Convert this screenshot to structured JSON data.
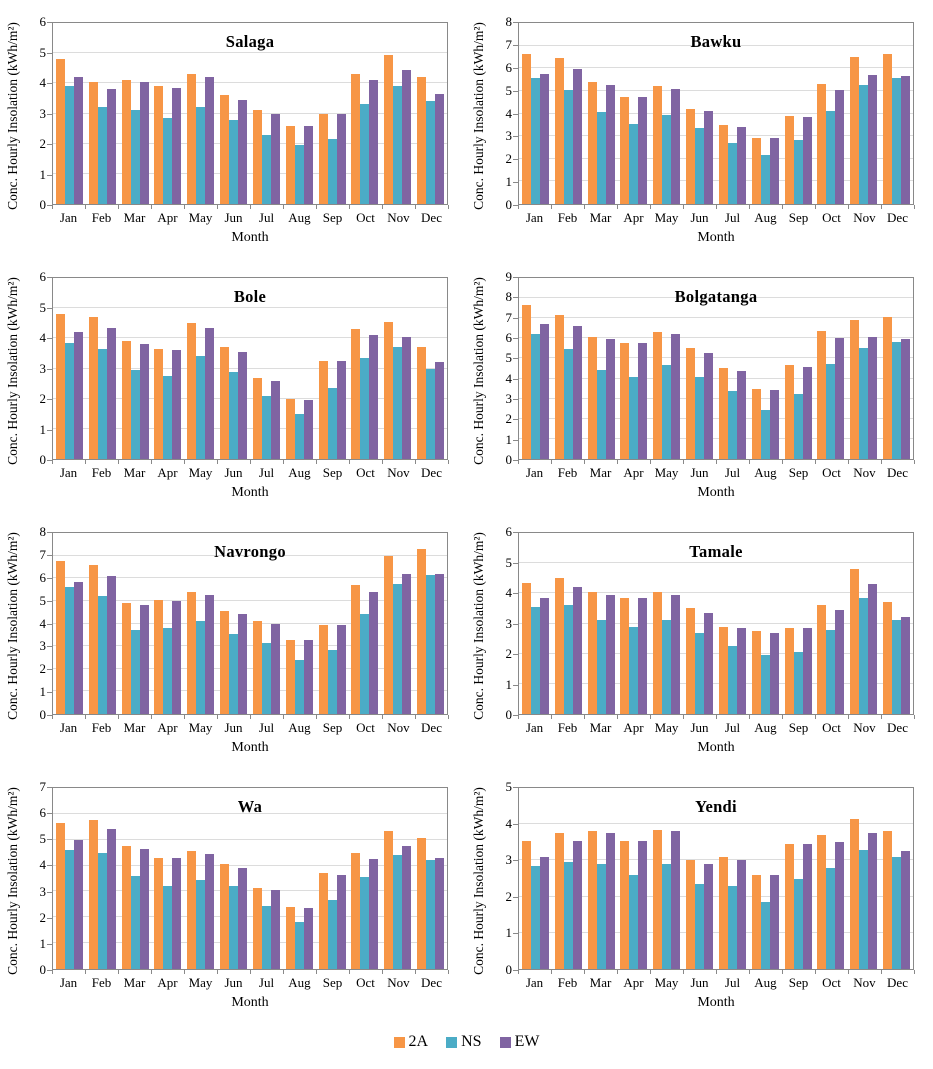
{
  "page": {
    "background": "#ffffff"
  },
  "axes_common": {
    "ylabel": "Conc. Hourly Insolation (kWh/m²)",
    "xlabel": "Month"
  },
  "colors": {
    "series_2A": "#F79646",
    "series_NS": "#4BACC6",
    "series_EW": "#8064A2",
    "gridline": "#DCDCDC",
    "axis_line": "#898989",
    "text": "#000000"
  },
  "legend": {
    "items": [
      {
        "label": "2A",
        "color": "#F79646"
      },
      {
        "label": "NS",
        "color": "#4BACC6"
      },
      {
        "label": "EW",
        "color": "#8064A2"
      }
    ]
  },
  "chart_data": [
    {
      "type": "bar",
      "title": "Salaga",
      "xlabel": "Month",
      "ylabel": "Conc. Hourly Insolation (kWh/m²)",
      "ylim": [
        0,
        6
      ],
      "ytick_step": 1,
      "grid": true,
      "categories": [
        "Jan",
        "Feb",
        "Mar",
        "Apr",
        "May",
        "Jun",
        "Jul",
        "Aug",
        "Sep",
        "Oct",
        "Nov",
        "Dec"
      ],
      "series": [
        {
          "name": "2A",
          "color": "#F79646",
          "values": [
            4.8,
            4.05,
            4.1,
            3.9,
            4.3,
            3.6,
            3.1,
            2.6,
            3.0,
            4.3,
            4.95,
            4.2
          ]
        },
        {
          "name": "NS",
          "color": "#4BACC6",
          "values": [
            3.9,
            3.2,
            3.1,
            2.85,
            3.2,
            2.8,
            2.3,
            1.95,
            2.15,
            3.3,
            3.9,
            3.4
          ]
        },
        {
          "name": "EW",
          "color": "#8064A2",
          "values": [
            4.2,
            3.8,
            4.05,
            3.85,
            4.2,
            3.45,
            3.0,
            2.6,
            3.0,
            4.1,
            4.45,
            3.65
          ]
        }
      ]
    },
    {
      "type": "bar",
      "title": "Bawku",
      "xlabel": "Month",
      "ylabel": "Conc. Hourly Insolation (kWh/m²)",
      "ylim": [
        0,
        8
      ],
      "ytick_step": 1,
      "grid": true,
      "categories": [
        "Jan",
        "Feb",
        "Mar",
        "Apr",
        "May",
        "Jun",
        "Jul",
        "Aug",
        "Sep",
        "Oct",
        "Nov",
        "Dec"
      ],
      "series": [
        {
          "name": "2A",
          "color": "#F79646",
          "values": [
            6.65,
            6.45,
            5.4,
            4.75,
            5.2,
            4.2,
            3.5,
            2.9,
            3.9,
            5.3,
            6.5,
            6.65
          ]
        },
        {
          "name": "NS",
          "color": "#4BACC6",
          "values": [
            5.55,
            5.05,
            4.05,
            3.55,
            3.95,
            3.35,
            2.7,
            2.15,
            2.85,
            4.1,
            5.25,
            5.55
          ]
        },
        {
          "name": "EW",
          "color": "#8064A2",
          "values": [
            5.75,
            5.95,
            5.25,
            4.75,
            5.1,
            4.1,
            3.4,
            2.9,
            3.85,
            5.05,
            5.7,
            5.65
          ]
        }
      ]
    },
    {
      "type": "bar",
      "title": "Bole",
      "xlabel": "Month",
      "ylabel": "Conc. Hourly Insolation (kWh/m²)",
      "ylim": [
        0,
        6
      ],
      "ytick_step": 1,
      "grid": true,
      "categories": [
        "Jan",
        "Feb",
        "Mar",
        "Apr",
        "May",
        "Jun",
        "Jul",
        "Aug",
        "Sep",
        "Oct",
        "Nov",
        "Dec"
      ],
      "series": [
        {
          "name": "2A",
          "color": "#F79646",
          "values": [
            4.8,
            4.7,
            3.9,
            3.65,
            4.5,
            3.7,
            2.7,
            2.0,
            3.25,
            4.3,
            4.55,
            3.7
          ]
        },
        {
          "name": "NS",
          "color": "#4BACC6",
          "values": [
            3.85,
            3.65,
            2.95,
            2.75,
            3.4,
            2.9,
            2.1,
            1.5,
            2.35,
            3.35,
            3.7,
            3.0
          ]
        },
        {
          "name": "EW",
          "color": "#8064A2",
          "values": [
            4.2,
            4.35,
            3.8,
            3.6,
            4.35,
            3.55,
            2.6,
            1.95,
            3.25,
            4.1,
            4.05,
            3.2
          ]
        }
      ]
    },
    {
      "type": "bar",
      "title": "Bolgatanga",
      "xlabel": "Month",
      "ylabel": "Conc. Hourly Insolation (kWh/m²)",
      "ylim": [
        0,
        9
      ],
      "ytick_step": 1,
      "grid": true,
      "categories": [
        "Jan",
        "Feb",
        "Mar",
        "Apr",
        "May",
        "Jun",
        "Jul",
        "Aug",
        "Sep",
        "Oct",
        "Nov",
        "Dec"
      ],
      "series": [
        {
          "name": "2A",
          "color": "#F79646",
          "values": [
            7.65,
            7.15,
            6.05,
            5.75,
            6.3,
            5.5,
            4.55,
            3.5,
            4.65,
            6.35,
            6.9,
            7.05
          ]
        },
        {
          "name": "NS",
          "color": "#4BACC6",
          "values": [
            6.2,
            5.45,
            4.45,
            4.1,
            4.65,
            4.1,
            3.4,
            2.45,
            3.25,
            4.7,
            5.5,
            5.8
          ]
        },
        {
          "name": "EW",
          "color": "#8064A2",
          "values": [
            6.7,
            6.6,
            5.95,
            5.75,
            6.2,
            5.25,
            4.4,
            3.45,
            4.6,
            6.0,
            6.05,
            5.95
          ]
        }
      ]
    },
    {
      "type": "bar",
      "title": "Navrongo",
      "xlabel": "Month",
      "ylabel": "Conc. Hourly Insolation (kWh/m²)",
      "ylim": [
        0,
        8
      ],
      "ytick_step": 1,
      "grid": true,
      "categories": [
        "Jan",
        "Feb",
        "Mar",
        "Apr",
        "May",
        "Jun",
        "Jul",
        "Aug",
        "Sep",
        "Oct",
        "Nov",
        "Dec"
      ],
      "series": [
        {
          "name": "2A",
          "color": "#F79646",
          "values": [
            6.75,
            6.6,
            4.9,
            5.05,
            5.4,
            4.55,
            4.1,
            3.25,
            3.95,
            5.7,
            7.0,
            7.3
          ]
        },
        {
          "name": "NS",
          "color": "#4BACC6",
          "values": [
            5.6,
            5.2,
            3.7,
            3.8,
            4.1,
            3.55,
            3.15,
            2.4,
            2.85,
            4.4,
            5.75,
            6.15
          ]
        },
        {
          "name": "EW",
          "color": "#8064A2",
          "values": [
            5.85,
            6.1,
            4.8,
            5.0,
            5.25,
            4.4,
            4.0,
            3.25,
            3.95,
            5.4,
            6.2,
            6.2
          ]
        }
      ]
    },
    {
      "type": "bar",
      "title": "Tamale",
      "xlabel": "Month",
      "ylabel": "Conc. Hourly Insolation (kWh/m²)",
      "ylim": [
        0,
        6
      ],
      "ytick_step": 1,
      "grid": true,
      "categories": [
        "Jan",
        "Feb",
        "Mar",
        "Apr",
        "May",
        "Jun",
        "Jul",
        "Aug",
        "Sep",
        "Oct",
        "Nov",
        "Dec"
      ],
      "series": [
        {
          "name": "2A",
          "color": "#F79646",
          "values": [
            4.35,
            4.5,
            4.05,
            3.85,
            4.05,
            3.5,
            2.9,
            2.75,
            2.85,
            3.6,
            4.8,
            3.7
          ]
        },
        {
          "name": "NS",
          "color": "#4BACC6",
          "values": [
            3.55,
            3.6,
            3.1,
            2.9,
            3.1,
            2.7,
            2.25,
            1.95,
            2.05,
            2.8,
            3.85,
            3.1
          ]
        },
        {
          "name": "EW",
          "color": "#8064A2",
          "values": [
            3.85,
            4.2,
            3.95,
            3.85,
            3.95,
            3.35,
            2.85,
            2.7,
            2.85,
            3.45,
            4.3,
            3.2
          ]
        }
      ]
    },
    {
      "type": "bar",
      "title": "Wa",
      "xlabel": "Month",
      "ylabel": "Conc. Hourly Insolation (kWh/m²)",
      "ylim": [
        0,
        7
      ],
      "ytick_step": 1,
      "grid": true,
      "categories": [
        "Jan",
        "Feb",
        "Mar",
        "Apr",
        "May",
        "Jun",
        "Jul",
        "Aug",
        "Sep",
        "Oct",
        "Nov",
        "Dec"
      ],
      "series": [
        {
          "name": "2A",
          "color": "#F79646",
          "values": [
            5.65,
            5.75,
            4.75,
            4.3,
            4.55,
            4.05,
            3.15,
            2.4,
            3.7,
            4.5,
            5.35,
            5.05
          ]
        },
        {
          "name": "NS",
          "color": "#4BACC6",
          "values": [
            4.6,
            4.5,
            3.6,
            3.2,
            3.45,
            3.2,
            2.45,
            1.8,
            2.65,
            3.55,
            4.4,
            4.2
          ]
        },
        {
          "name": "EW",
          "color": "#8064A2",
          "values": [
            5.0,
            5.4,
            4.65,
            4.3,
            4.45,
            3.9,
            3.05,
            2.35,
            3.65,
            4.25,
            4.75,
            4.3
          ]
        }
      ]
    },
    {
      "type": "bar",
      "title": "Yendi",
      "xlabel": "Month",
      "ylabel": "Conc. Hourly Insolation (kWh/m²)",
      "ylim": [
        0,
        5
      ],
      "ytick_step": 1,
      "grid": true,
      "categories": [
        "Jan",
        "Feb",
        "Mar",
        "Apr",
        "May",
        "Jun",
        "Jul",
        "Aug",
        "Sep",
        "Oct",
        "Nov",
        "Dec"
      ],
      "series": [
        {
          "name": "2A",
          "color": "#F79646",
          "values": [
            3.55,
            3.75,
            3.8,
            3.55,
            3.85,
            3.0,
            3.1,
            2.6,
            3.45,
            3.7,
            4.15,
            3.8
          ]
        },
        {
          "name": "NS",
          "color": "#4BACC6",
          "values": [
            2.85,
            2.95,
            2.9,
            2.6,
            2.9,
            2.35,
            2.3,
            1.85,
            2.5,
            2.8,
            3.3,
            3.1
          ]
        },
        {
          "name": "EW",
          "color": "#8064A2",
          "values": [
            3.1,
            3.55,
            3.75,
            3.55,
            3.8,
            2.9,
            3.0,
            2.6,
            3.45,
            3.5,
            3.75,
            3.25
          ]
        }
      ]
    }
  ]
}
